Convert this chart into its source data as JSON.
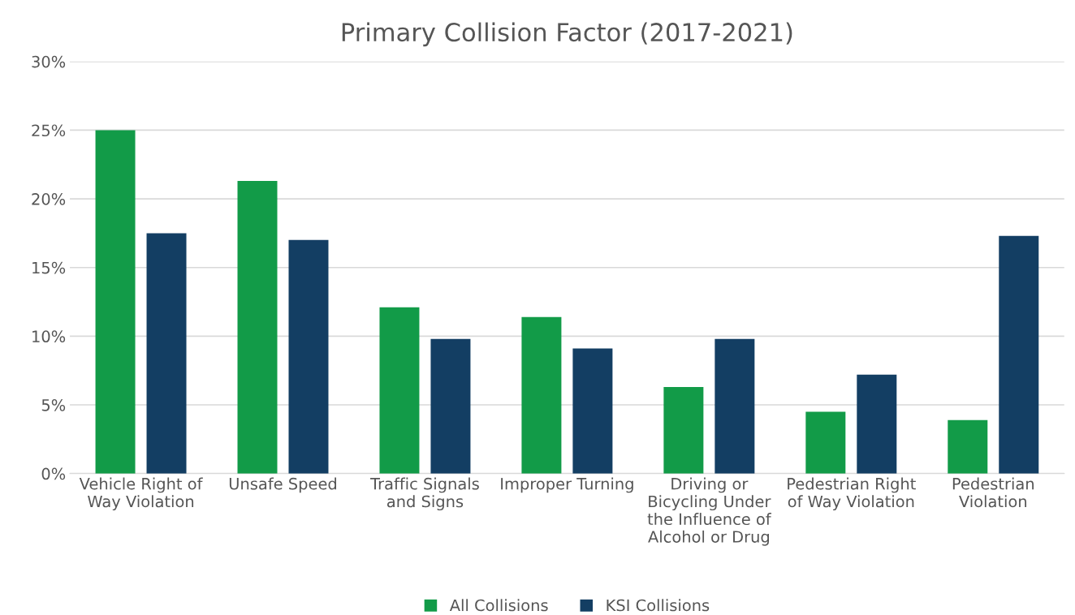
{
  "chart_data": {
    "type": "bar",
    "title": "Primary Collision Factor (2017-2021)",
    "categories": [
      "Vehicle Right of Way Violation",
      "Unsafe Speed",
      "Traffic Signals and Signs",
      "Improper Turning",
      "Driving or Bicycling Under the Influence of Alcohol or Drug",
      "Pedestrian Right of Way Violation",
      "Pedestrian Violation"
    ],
    "series": [
      {
        "name": "All Collisions",
        "color": "#129b48",
        "values": [
          25.0,
          21.3,
          12.1,
          11.4,
          6.3,
          4.5,
          3.9
        ]
      },
      {
        "name": "KSI Collisions",
        "color": "#133e63",
        "values": [
          17.5,
          17.0,
          9.8,
          9.1,
          9.8,
          7.2,
          17.3
        ]
      }
    ],
    "ylim": [
      0,
      30
    ],
    "yticks": [
      {
        "value": 0,
        "label": "0%"
      },
      {
        "value": 5,
        "label": "5%"
      },
      {
        "value": 10,
        "label": "10%"
      },
      {
        "value": 15,
        "label": "15%"
      },
      {
        "value": 20,
        "label": "20%"
      },
      {
        "value": 25,
        "label": "25%"
      },
      {
        "value": 30,
        "label": "30%"
      }
    ],
    "grid": "y",
    "legend": "bottom"
  }
}
